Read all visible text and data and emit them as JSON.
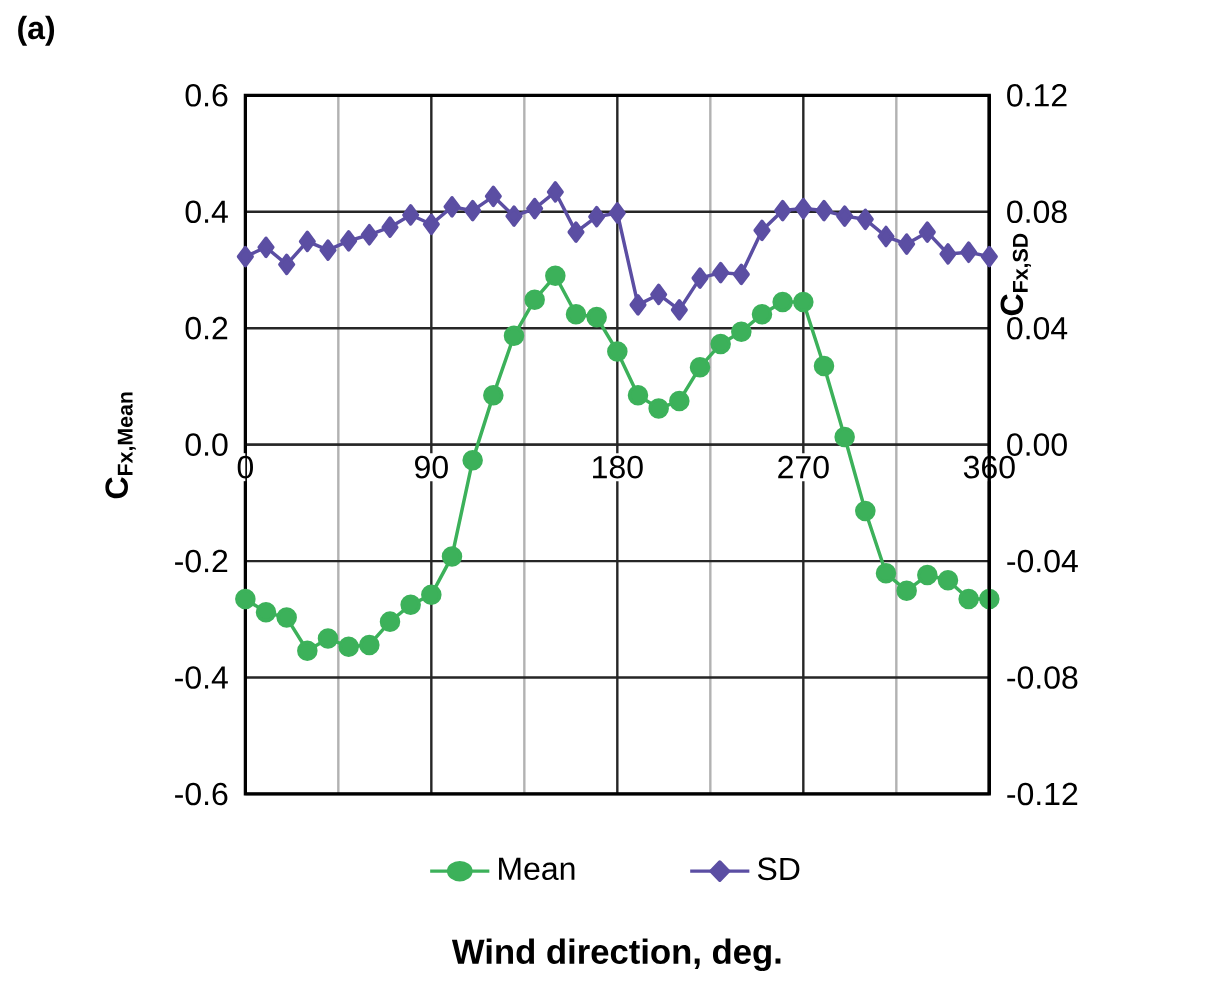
{
  "chart_data": {
    "type": "line",
    "x": [
      0,
      10,
      20,
      30,
      40,
      50,
      60,
      70,
      80,
      90,
      100,
      110,
      120,
      130,
      140,
      150,
      160,
      170,
      180,
      190,
      200,
      210,
      220,
      230,
      240,
      250,
      260,
      270,
      280,
      290,
      300,
      310,
      320,
      330,
      340,
      350,
      360
    ],
    "series": [
      {
        "name": "Mean",
        "color": "#3cb15a",
        "marker": "circle",
        "values": [
          -0.265,
          -0.288,
          -0.297,
          -0.354,
          -0.333,
          -0.347,
          -0.344,
          -0.304,
          -0.275,
          -0.258,
          -0.192,
          -0.027,
          0.085,
          0.187,
          0.249,
          0.29,
          0.224,
          0.219,
          0.16,
          0.085,
          0.062,
          0.075,
          0.133,
          0.173,
          0.194,
          0.224,
          0.245,
          0.245,
          0.135,
          0.013,
          -0.114,
          -0.221,
          -0.251,
          -0.224,
          -0.233,
          -0.265,
          -0.265
        ]
      },
      {
        "name": "SD",
        "color": "#5b4ea3",
        "marker": "diamond",
        "axis": "y2",
        "values": [
          0.0646,
          0.0678,
          0.0619,
          0.0698,
          0.0668,
          0.07,
          0.0721,
          0.0747,
          0.0789,
          0.0757,
          0.0817,
          0.0804,
          0.0853,
          0.0785,
          0.0811,
          0.0868,
          0.073,
          0.0783,
          0.0796,
          0.048,
          0.0516,
          0.0463,
          0.0572,
          0.0591,
          0.0585,
          0.0736,
          0.0804,
          0.0811,
          0.0804,
          0.0785,
          0.0774,
          0.0715,
          0.0689,
          0.073,
          0.0655,
          0.0661,
          0.0646
        ]
      }
    ],
    "xlabel": "Wind direction, deg.",
    "ylabel": "C$_{Fx,Mean}$",
    "y2label": "C$_{Fx,SD}$",
    "annotations": [
      "(a)"
    ],
    "xlim": [
      0,
      360
    ],
    "xticks": [
      0,
      90,
      180,
      270,
      360
    ],
    "ylim": [
      -0.6,
      0.6
    ],
    "yticks": [
      -0.6,
      -0.4,
      -0.2,
      {
        "value": 0,
        "label": "0.0"
      },
      0.2,
      0.4,
      0.6
    ],
    "y2lim": [
      -0.12,
      0.12
    ],
    "y2ticks": [
      -0.12,
      -0.08,
      -0.04,
      {
        "value": 0,
        "label": "0.00"
      },
      0.04,
      0.08,
      0.12
    ],
    "grid": true,
    "legend": "bottom"
  }
}
